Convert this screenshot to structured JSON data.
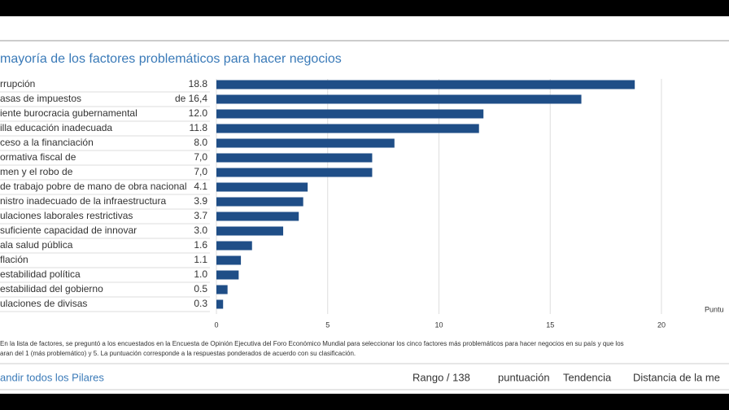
{
  "chart_data": {
    "type": "bar",
    "orientation": "horizontal",
    "title": "mayoría de los factores problemáticos para hacer negocios",
    "categories": [
      "rrupción",
      "asas de impuestos",
      "iente burocracia gubernamental",
      "illa educación inadecuada",
      "ceso a la financiación",
      "ormativa fiscal de",
      "men y el robo de",
      "de trabajo pobre de mano de obra nacional",
      "nistro inadecuado de la infraestructura",
      "ulaciones laborales restrictivas",
      "suficiente capacidad de innovar",
      "ala salud pública",
      "flación",
      "estabilidad política",
      "estabilidad del gobierno",
      "ulaciones de divisas"
    ],
    "values": [
      18.8,
      16.4,
      12.0,
      11.8,
      8.0,
      7.0,
      7.0,
      4.1,
      3.9,
      3.7,
      3.0,
      1.6,
      1.1,
      1.0,
      0.5,
      0.3
    ],
    "value_labels": [
      "18.8",
      "de 16,4",
      "12.0",
      "11.8",
      "8.0",
      "7,0",
      "7,0",
      "4.1",
      "3.9",
      "3.7",
      "3.0",
      "1.6",
      "1.1",
      "1.0",
      "0.5",
      "0.3"
    ],
    "color": "#1f4e87",
    "xlim": [
      0,
      20
    ],
    "xticks": [
      0,
      5,
      10,
      15,
      20
    ],
    "grid": true,
    "xlabel": "Puntu"
  },
  "footnote": [
    "En la lista de factores, se preguntó a los encuestados en la Encuesta de Opinión Ejecutiva del Foro Económico Mundial para seleccionar los cinco factores más problemáticos para hacer negocios en su país y que los",
    "aran del 1 (más problemático) y 5. La puntuación corresponde a la respuestas ponderados de acuerdo con su clasificación."
  ],
  "footer": [
    "andir todos los Pilares",
    "Rango / 138",
    "puntuación",
    "Tendencia",
    "Distancia de la me"
  ]
}
